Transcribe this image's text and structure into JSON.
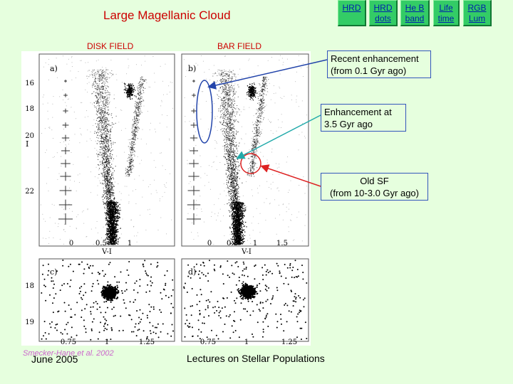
{
  "nav": {
    "items": [
      {
        "label": "HRD"
      },
      {
        "label": "HRD\ndots"
      },
      {
        "label": "He B\nband"
      },
      {
        "label": "Life\ntime"
      },
      {
        "label": "RGB\nLum"
      }
    ]
  },
  "slide": {
    "title": "Large Magellanic Cloud",
    "disk_label": "DISK FIELD",
    "bar_label": "BAR FIELD"
  },
  "annotations": {
    "recent": "Recent enhancement\n(from 0.1 Gyr ago)",
    "enhancement": "Enhancement at\n3.5 Gyr ago",
    "old": "Old SF\n(from 10-3.0 Gyr ago)"
  },
  "figure": {
    "panel_a": "a)",
    "panel_b": "b)",
    "panel_c": "c)",
    "panel_d": "d)",
    "y_axis_label": "I",
    "x_axis_label": "V-I",
    "y_ticks_top": [
      "16",
      "18",
      "20",
      "22"
    ],
    "y_ticks_bottom": [
      "18",
      "19"
    ],
    "x_ticks_top": [
      "0",
      "0.5",
      "1",
      "1.5"
    ],
    "x_ticks_bottom": [
      "0.75",
      "1",
      "1.25"
    ]
  },
  "colors": {
    "nav_bg": "#33cc66",
    "title": "#cc0000",
    "arrow_blue": "#2244aa",
    "arrow_teal": "#22aaaa",
    "arrow_red": "#dd2222"
  },
  "footer": {
    "credit": "Smecker-Hane et al. 2002",
    "date": "June 2005",
    "lecture": "Lectures on Stellar Populations"
  }
}
